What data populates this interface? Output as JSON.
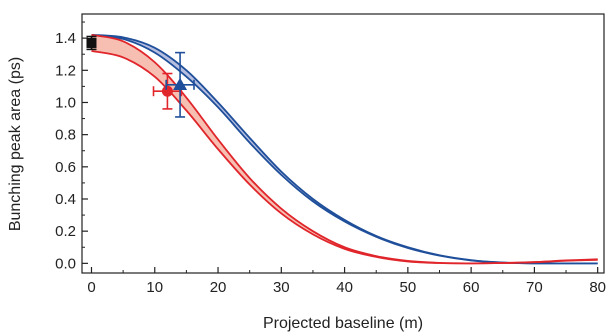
{
  "chart_data": {
    "type": "line",
    "title": "",
    "xlabel": "Projected baseline (m)",
    "ylabel": "Bunching peak area (ps)",
    "xlim": [
      -1.5,
      81
    ],
    "ylim": [
      -0.06,
      1.55
    ],
    "x_ticks": [
      0,
      10,
      20,
      30,
      40,
      50,
      60,
      70,
      80
    ],
    "x_tick_labels": [
      "0",
      "10",
      "20",
      "30",
      "40",
      "50",
      "60",
      "70",
      "80"
    ],
    "y_ticks": [
      0.0,
      0.2,
      0.4,
      0.6,
      0.8,
      1.0,
      1.2,
      1.4
    ],
    "y_tick_labels": [
      "0.0",
      "0.2",
      "0.4",
      "0.6",
      "0.8",
      "1.0",
      "1.2",
      "1.4"
    ],
    "grid": false,
    "legend": "none",
    "series": [
      {
        "color": "#1f4f9a",
        "fill_color": "#aab4dc",
        "x": [
          0,
          5,
          10,
          15,
          20,
          25,
          30,
          35,
          40,
          45,
          50,
          55,
          60,
          65,
          70,
          75,
          80
        ],
        "upper": [
          1.42,
          1.405,
          1.34,
          1.2,
          1.0,
          0.78,
          0.57,
          0.4,
          0.27,
          0.17,
          0.1,
          0.05,
          0.02,
          0.005,
          0.0,
          0.0,
          0.0
        ],
        "lower": [
          1.42,
          1.395,
          1.31,
          1.16,
          0.97,
          0.75,
          0.55,
          0.385,
          0.26,
          0.165,
          0.095,
          0.048,
          0.018,
          0.004,
          0.0,
          0.0,
          0.0
        ]
      },
      {
        "color": "#e0252b",
        "fill_color": "#f4b4a4",
        "x": [
          0,
          5,
          10,
          15,
          20,
          25,
          30,
          35,
          40,
          45,
          50,
          55,
          60,
          65,
          70,
          75,
          80
        ],
        "upper": [
          1.42,
          1.38,
          1.25,
          1.03,
          0.77,
          0.53,
          0.34,
          0.2,
          0.1,
          0.045,
          0.015,
          0.003,
          0.0,
          0.002,
          0.008,
          0.018,
          0.025
        ],
        "lower": [
          1.32,
          1.28,
          1.16,
          0.95,
          0.71,
          0.49,
          0.31,
          0.18,
          0.09,
          0.04,
          0.012,
          0.002,
          0.0,
          0.002,
          0.007,
          0.016,
          0.022
        ]
      }
    ],
    "points": [
      {
        "marker": "square",
        "color": "#111111",
        "x": 0,
        "y": 1.37,
        "yerr": 0.04,
        "xerr": 0.3
      },
      {
        "marker": "circle",
        "color": "#e0252b",
        "x": 12,
        "y": 1.07,
        "yerr": 0.11,
        "xerr": 2.2
      },
      {
        "marker": "triangle",
        "color": "#1f4f9a",
        "x": 14,
        "y": 1.11,
        "yerr": 0.2,
        "xerr": 2.2
      }
    ]
  }
}
